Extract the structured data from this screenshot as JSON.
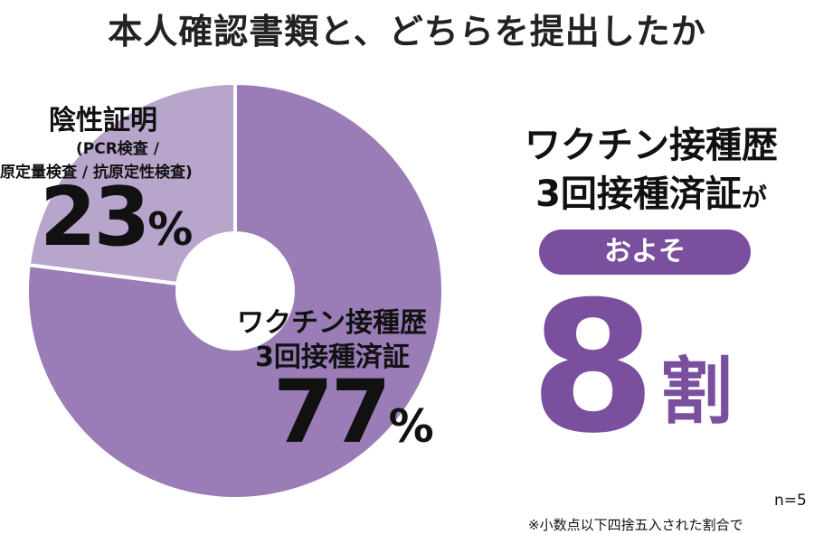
{
  "title": "本人確認書類と、どちらを提出したか",
  "chart_data": {
    "type": "pie",
    "donut": true,
    "categories": [
      "ワクチン接種歴3回接種済証",
      "陰性証明"
    ],
    "values": [
      77,
      23
    ],
    "unit": "%",
    "colors": [
      "#9a7cb6",
      "#b8a5cc"
    ]
  },
  "slices": {
    "negative": {
      "title": "陰性証明",
      "sub1": "(PCR検査 /",
      "sub2": "原定量検査 / 抗原定性検査)",
      "pct": "23",
      "unit": "%"
    },
    "vaccine": {
      "line1": "ワクチン接種歴",
      "line2": "3回接種済証",
      "pct": "77",
      "unit": "%"
    }
  },
  "callout": {
    "line1": "ワクチン接種歴",
    "line2": "3回接種済証",
    "line2_suffix": "が",
    "badge": "およそ",
    "value": "8",
    "value_unit": "割"
  },
  "n_label": "n=5",
  "footnote": "※小数点以下四捨五入された割合で"
}
